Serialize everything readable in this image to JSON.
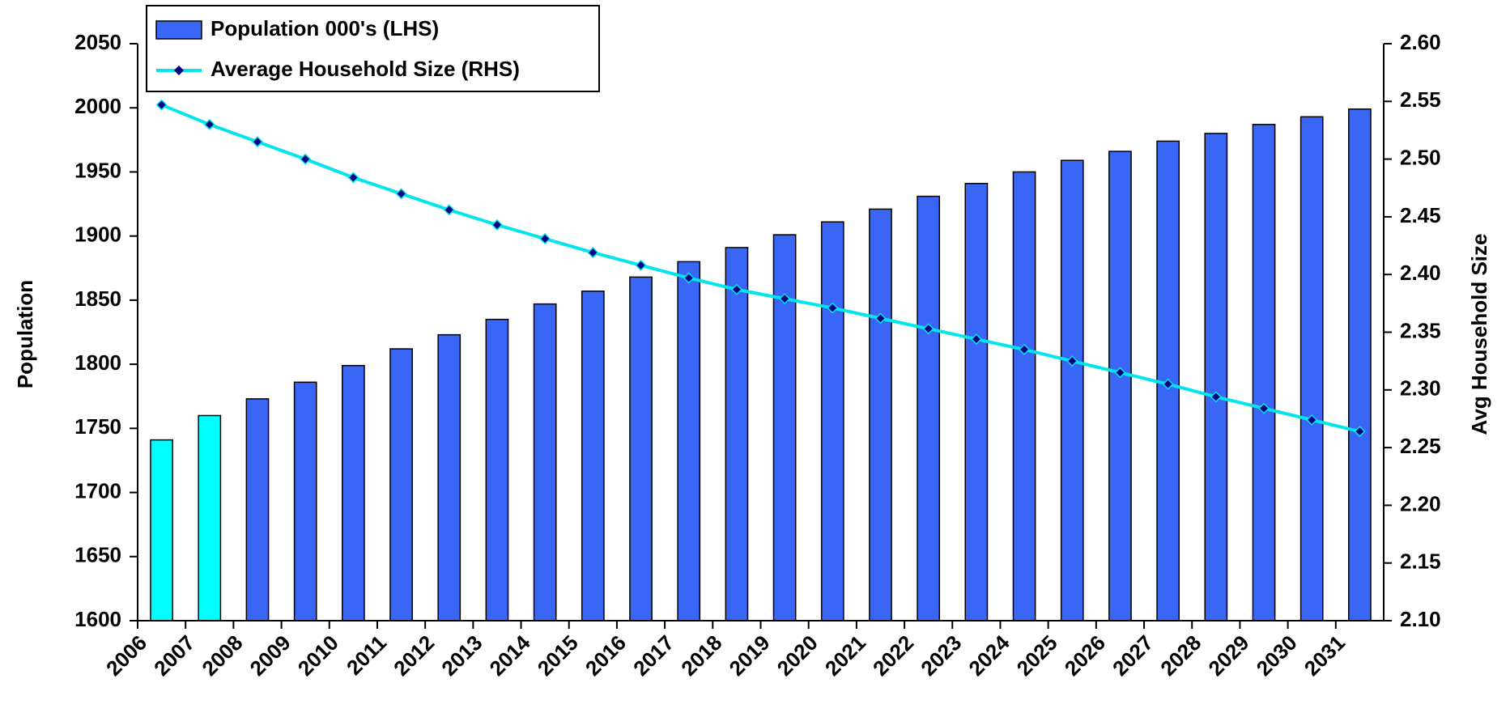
{
  "chart_data": {
    "type": "bar_line",
    "categories": [
      "2006",
      "2007",
      "2008",
      "2009",
      "2010",
      "2011",
      "2012",
      "2013",
      "2014",
      "2015",
      "2016",
      "2017",
      "2018",
      "2019",
      "2020",
      "2021",
      "2022",
      "2023",
      "2024",
      "2025",
      "2026",
      "2027",
      "2028",
      "2029",
      "2030",
      "2031"
    ],
    "series": [
      {
        "name": "Population 000's (LHS)",
        "type": "bar",
        "color": "#3a66f5",
        "colors": [
          "#00ffff",
          "#00ffff",
          "#3a66f5",
          "#3a66f5",
          "#3a66f5",
          "#3a66f5",
          "#3a66f5",
          "#3a66f5",
          "#3a66f5",
          "#3a66f5",
          "#3a66f5",
          "#3a66f5",
          "#3a66f5",
          "#3a66f5",
          "#3a66f5",
          "#3a66f5",
          "#3a66f5",
          "#3a66f5",
          "#3a66f5",
          "#3a66f5",
          "#3a66f5",
          "#3a66f5",
          "#3a66f5",
          "#3a66f5",
          "#3a66f5",
          "#3a66f5"
        ],
        "values": [
          1741,
          1760,
          1773,
          1786,
          1799,
          1812,
          1823,
          1835,
          1847,
          1857,
          1868,
          1880,
          1891,
          1901,
          1911,
          1921,
          1931,
          1941,
          1950,
          1959,
          1966,
          1974,
          1980,
          1987,
          1993,
          1999
        ]
      },
      {
        "name": "Average Household Size (RHS)",
        "type": "line",
        "axis": "y2",
        "color": "#00e5ee",
        "marker_color": "#000080",
        "values": [
          2.547,
          2.53,
          2.515,
          2.5,
          2.484,
          2.47,
          2.456,
          2.443,
          2.431,
          2.419,
          2.408,
          2.397,
          2.387,
          2.379,
          2.371,
          2.362,
          2.353,
          2.344,
          2.335,
          2.325,
          2.315,
          2.305,
          2.294,
          2.284,
          2.274,
          2.264
        ]
      }
    ],
    "ylabel": "Population",
    "y2label": "Avg Household Size",
    "ylim": [
      1600,
      2050
    ],
    "yticks": [
      1600,
      1650,
      1700,
      1750,
      1800,
      1850,
      1900,
      1950,
      2000,
      2050
    ],
    "y2lim": [
      2.1,
      2.6
    ],
    "y2ticks": [
      {
        "value": 2.1,
        "label": "2.10"
      },
      {
        "value": 2.15,
        "label": "2.15"
      },
      {
        "value": 2.2,
        "label": "2.20"
      },
      {
        "value": 2.25,
        "label": "2.25"
      },
      {
        "value": 2.3,
        "label": "2.30"
      },
      {
        "value": 2.35,
        "label": "2.35"
      },
      {
        "value": 2.4,
        "label": "2.40"
      },
      {
        "value": 2.45,
        "label": "2.45"
      },
      {
        "value": 2.5,
        "label": "2.50"
      },
      {
        "value": 2.55,
        "label": "2.55"
      },
      {
        "value": 2.6,
        "label": "2.60"
      }
    ],
    "legend": "top-left"
  }
}
